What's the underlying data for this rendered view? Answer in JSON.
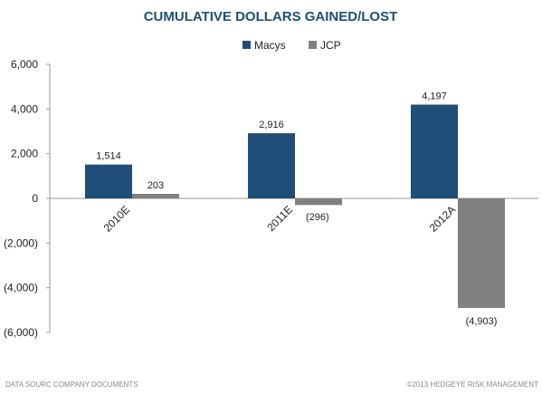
{
  "chart_data": {
    "type": "bar",
    "title": "CUMULATIVE DOLLARS GAINED/LOST",
    "categories": [
      "2010E",
      "2011E",
      "2012A"
    ],
    "series": [
      {
        "name": "Macys",
        "values": [
          1514,
          2916,
          4197
        ],
        "labels": [
          "1,514",
          "2,916",
          "4,197"
        ],
        "color": "#1f4e79"
      },
      {
        "name": "JCP",
        "values": [
          203,
          -296,
          -4903
        ],
        "labels": [
          "203",
          "(296)",
          "(4,903)"
        ],
        "color": "#808080"
      }
    ],
    "ylim": [
      -6000,
      6000
    ],
    "yticks": [
      6000,
      4000,
      2000,
      0,
      -2000,
      -4000,
      -6000
    ],
    "ytick_labels": [
      "6,000",
      "4,000",
      "2,000",
      "0",
      "(2,000)",
      "(4,000)",
      "(6,000)"
    ],
    "legend_position": "top-center",
    "grid": false
  },
  "footer": {
    "source": "DATA SOURC COMPANY DOCUMENTS",
    "copyright": "©2013 HEDGEYE RISK MANAGEMENT"
  }
}
